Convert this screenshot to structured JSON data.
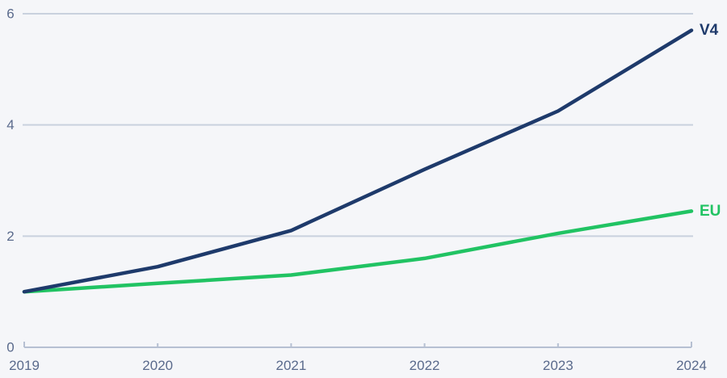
{
  "chart_data": {
    "type": "line",
    "title": "",
    "xlabel": "",
    "ylabel": "",
    "x": [
      2019,
      2020,
      2021,
      2022,
      2023,
      2024
    ],
    "x_tick_labels": [
      "2019",
      "2020",
      "2021",
      "2022",
      "2023",
      "2024"
    ],
    "series": [
      {
        "name": "V4",
        "values": [
          1.0,
          1.45,
          2.1,
          3.2,
          4.25,
          5.7
        ],
        "color": "#1e3a6b"
      },
      {
        "name": "EU",
        "values": [
          1.0,
          1.15,
          1.3,
          1.6,
          2.05,
          2.45
        ],
        "color": "#21c363"
      }
    ],
    "ylim": [
      0,
      6
    ],
    "yticks": [
      0,
      2,
      4,
      6
    ],
    "ytick_labels": [
      "0",
      "2",
      "4",
      "6"
    ],
    "grid": "horizontal",
    "legend_position": "line-end-labels"
  },
  "colors": {
    "background": "#f5f6f9",
    "gridline": "#c9d1de",
    "axis_line": "#b6c0d2",
    "tick_label": "#5a6a8c",
    "series_v4": "#1e3a6b",
    "series_eu": "#21c363"
  },
  "labels": {
    "series_end_v4": "V4",
    "series_end_eu": "EU"
  }
}
